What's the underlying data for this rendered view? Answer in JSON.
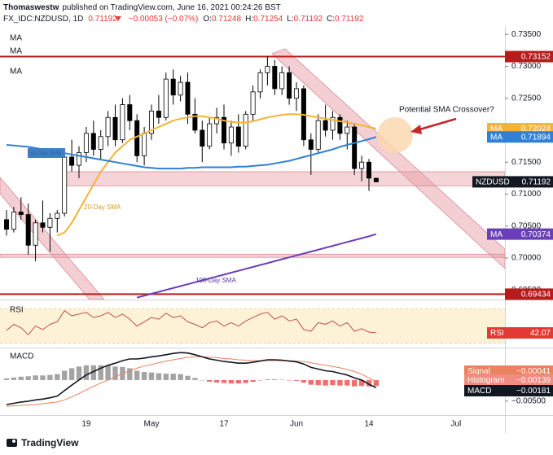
{
  "header": {
    "author": "Thomaswestw",
    "published": "published on TradingView.com, June 16, 2021 00:24:26 BST",
    "symbol": "FX_IDC:NZDUSD, 1D",
    "last": "0.71192",
    "change": "−0.00053 (−0.07%)",
    "ohlc": [
      {
        "key": "O:",
        "value": "0.71248"
      },
      {
        "key": "H:",
        "value": "0.71254"
      },
      {
        "key": "L:",
        "value": "0.71192"
      },
      {
        "key": "C:",
        "value": "0.71192"
      }
    ]
  },
  "annotations": {
    "crossover": "Potential SMA Crossover?",
    "sma20": "20-Day SMA",
    "sma50": "50-Day SMA",
    "sma100": "100-Day SMA"
  },
  "footer": "TradingView",
  "chart_data": [
    {
      "type": "candlestick",
      "symbol": "NZDUSD",
      "last_label": "0.71192",
      "up_color": "#ffffff",
      "down_color": "#000000",
      "categories": [
        null,
        null,
        null,
        null,
        null,
        null,
        null,
        null,
        null,
        null,
        null,
        "19",
        null,
        null,
        null,
        null,
        null,
        null,
        null,
        null,
        "May",
        null,
        null,
        null,
        null,
        null,
        null,
        null,
        null,
        null,
        "17",
        null,
        null,
        null,
        null,
        null,
        null,
        null,
        null,
        null,
        "Jun",
        null,
        null,
        null,
        null,
        null,
        null,
        null,
        null,
        null,
        "14",
        null,
        null,
        null,
        null,
        null,
        null,
        null,
        null,
        null,
        null,
        null,
        "Jul"
      ],
      "open": [
        0.706,
        0.7045,
        0.7072,
        0.7068,
        0.702,
        0.7055,
        0.7048,
        0.7062,
        0.707,
        0.7158,
        0.7145,
        0.7165,
        0.7195,
        0.717,
        0.719,
        0.722,
        0.7185,
        0.724,
        0.7215,
        0.716,
        0.7195,
        0.723,
        0.722,
        0.728,
        0.7255,
        0.7275,
        0.7225,
        0.72,
        0.7175,
        0.721,
        0.722,
        0.718,
        0.7205,
        0.7175,
        0.7225,
        0.726,
        0.729,
        0.73,
        0.7265,
        0.729,
        0.725,
        0.7265,
        0.7185,
        0.717,
        0.7215,
        0.72,
        0.722,
        0.7195,
        0.7205,
        0.714,
        0.715,
        0.71248,
        null,
        null,
        null,
        null,
        null,
        null,
        null,
        null,
        null,
        null,
        null
      ],
      "high": [
        0.7075,
        0.708,
        0.7095,
        0.7085,
        0.706,
        0.709,
        0.707,
        0.7075,
        0.7165,
        0.7185,
        0.7175,
        0.7205,
        0.7215,
        0.72,
        0.723,
        0.724,
        0.725,
        0.7255,
        0.7225,
        0.7205,
        0.724,
        0.7255,
        0.729,
        0.7295,
        0.7285,
        0.729,
        0.725,
        0.7215,
        0.722,
        0.7235,
        0.724,
        0.7215,
        0.7225,
        0.723,
        0.727,
        0.7295,
        0.7316,
        0.731,
        0.73,
        0.73,
        0.7275,
        0.727,
        0.7195,
        0.7225,
        0.724,
        0.723,
        0.7225,
        0.7215,
        0.721,
        0.716,
        0.7155,
        0.71254,
        null,
        null,
        null,
        null,
        null,
        null,
        null,
        null,
        null,
        null,
        null
      ],
      "low": [
        0.7035,
        0.704,
        0.706,
        0.7005,
        0.6995,
        0.704,
        0.701,
        0.704,
        0.7065,
        0.7135,
        0.7125,
        0.715,
        0.716,
        0.7155,
        0.7175,
        0.7175,
        0.718,
        0.72,
        0.715,
        0.7145,
        0.7185,
        0.721,
        0.7215,
        0.724,
        0.7245,
        0.721,
        0.7195,
        0.715,
        0.717,
        0.7195,
        0.717,
        0.716,
        0.7165,
        0.717,
        0.7215,
        0.725,
        0.727,
        0.7255,
        0.7255,
        0.724,
        0.723,
        0.7175,
        0.713,
        0.7165,
        0.719,
        0.7185,
        0.7185,
        0.717,
        0.713,
        0.712,
        0.7105,
        0.71192,
        null,
        null,
        null,
        null,
        null,
        null,
        null,
        null,
        null,
        null,
        null
      ],
      "close": [
        0.7045,
        0.7072,
        0.7068,
        0.702,
        0.7055,
        0.7048,
        0.7062,
        0.707,
        0.7158,
        0.7145,
        0.7165,
        0.7195,
        0.717,
        0.719,
        0.722,
        0.7185,
        0.724,
        0.7215,
        0.716,
        0.7195,
        0.723,
        0.722,
        0.728,
        0.7255,
        0.7275,
        0.7225,
        0.72,
        0.7175,
        0.721,
        0.722,
        0.718,
        0.7205,
        0.7175,
        0.7225,
        0.726,
        0.729,
        0.73,
        0.7265,
        0.729,
        0.725,
        0.7265,
        0.7185,
        0.717,
        0.7215,
        0.72,
        0.722,
        0.7195,
        0.7205,
        0.714,
        0.715,
        0.7125,
        0.71192,
        null,
        null,
        null,
        null,
        null,
        null,
        null,
        null,
        null,
        null,
        null
      ],
      "series": [
        {
          "name": "MA",
          "color": "#f5b335",
          "last_label": "0.72024",
          "values": [
            null,
            null,
            null,
            null,
            null,
            null,
            null,
            0.7035,
            0.704,
            0.7055,
            0.7075,
            0.7095,
            0.7115,
            0.7135,
            0.715,
            0.7165,
            0.7175,
            0.7185,
            0.719,
            0.7195,
            0.72,
            0.7205,
            0.721,
            0.7215,
            0.7218,
            0.722,
            0.7222,
            0.7222,
            0.722,
            0.7218,
            0.7215,
            0.7213,
            0.7212,
            0.7212,
            0.7214,
            0.7217,
            0.722,
            0.7222,
            0.7224,
            0.7225,
            0.7225,
            0.7224,
            0.7222,
            0.722,
            0.7218,
            0.7216,
            0.7214,
            0.7212,
            0.721,
            0.7208,
            0.7205,
            0.72024,
            null,
            null,
            null,
            null,
            null,
            null,
            null,
            null,
            null,
            null,
            null
          ]
        },
        {
          "name": "MA",
          "color": "#2f80d6",
          "last_label": "0.71894",
          "values": [
            0.7177,
            0.7176,
            0.7175,
            0.7174,
            0.7172,
            0.717,
            0.7168,
            0.7166,
            0.7164,
            0.7162,
            0.716,
            0.7158,
            0.7156,
            0.7154,
            0.7152,
            0.715,
            0.7148,
            0.7146,
            0.7144,
            0.7142,
            0.7141,
            0.714,
            0.714,
            0.714,
            0.714,
            0.7141,
            0.7141,
            0.7142,
            0.7142,
            0.7142,
            0.7142,
            0.7142,
            0.7143,
            0.7143,
            0.7144,
            0.7145,
            0.7146,
            0.7148,
            0.715,
            0.7152,
            0.7155,
            0.7158,
            0.7161,
            0.7164,
            0.7167,
            0.717,
            0.7174,
            0.7177,
            0.718,
            0.7183,
            0.7186,
            0.71894,
            null,
            null,
            null,
            null,
            null,
            null,
            null,
            null,
            null,
            null,
            null
          ]
        },
        {
          "name": "MA",
          "color": "#6a3fb8",
          "last_label": "0.70374",
          "values": [
            null,
            null,
            null,
            null,
            null,
            null,
            null,
            null,
            null,
            null,
            null,
            null,
            null,
            null,
            null,
            null,
            null,
            null,
            0.6938,
            0.6941,
            0.6944,
            0.6947,
            0.695,
            0.6953,
            0.6956,
            0.6959,
            0.6962,
            0.6965,
            0.6968,
            0.6971,
            0.6974,
            0.6977,
            0.698,
            0.6983,
            0.6986,
            0.6989,
            0.6992,
            0.6995,
            0.6998,
            0.7001,
            0.7004,
            0.7007,
            0.701,
            0.7013,
            0.7016,
            0.7019,
            0.7022,
            0.7025,
            0.7028,
            0.7031,
            0.7034,
            0.70374,
            null,
            null,
            null,
            null,
            null,
            null,
            null,
            null,
            null,
            null,
            null
          ]
        }
      ],
      "levels": [
        {
          "value": 0.73152,
          "label": "0.73152",
          "color": "#b71c1c"
        },
        {
          "value": 0.69434,
          "label": "0.69434",
          "color": "#b71c1c"
        }
      ],
      "zones": [
        {
          "from": 0.7113,
          "to": 0.7135
        },
        {
          "from": 0.7001,
          "to": 0.7006
        }
      ],
      "ylim": [
        0.6935,
        0.7363
      ],
      "yticks": [
        {
          "value": 0.735,
          "label": "0.73500"
        },
        {
          "value": 0.73,
          "label": "0.73000"
        },
        {
          "value": 0.725,
          "label": "0.72500"
        },
        {
          "value": 0.72,
          "label": "0.72000"
        },
        {
          "value": 0.715,
          "label": "0.71500"
        },
        {
          "value": 0.71,
          "label": "0.71000"
        },
        {
          "value": 0.705,
          "label": "0.70500"
        },
        {
          "value": 0.7,
          "label": "0.70000"
        },
        {
          "value": 0.695,
          "label": "0.69500"
        }
      ],
      "grid": false
    },
    {
      "type": "line",
      "name": "RSI",
      "color": "#c0504d",
      "last_label": "42.07",
      "band": [
        30,
        70
      ],
      "band_color": "#fdf1d6",
      "values": [
        45,
        52,
        48,
        40,
        50,
        46,
        52,
        55,
        68,
        62,
        64,
        66,
        60,
        62,
        66,
        60,
        64,
        58,
        50,
        55,
        60,
        58,
        65,
        60,
        62,
        55,
        52,
        48,
        54,
        56,
        50,
        54,
        50,
        56,
        60,
        64,
        66,
        58,
        62,
        56,
        58,
        46,
        44,
        54,
        52,
        56,
        50,
        54,
        44,
        47,
        43,
        42.07,
        null,
        null,
        null,
        null,
        null,
        null,
        null,
        null,
        null,
        null,
        null
      ],
      "ylim": [
        25,
        80
      ]
    },
    {
      "type": "macd",
      "title": "MACD",
      "series": [
        {
          "name": "Signal",
          "kind": "line",
          "color": "#e8825f",
          "last_label": "−0.00041",
          "values": [
            -0.0062,
            -0.0061,
            -0.006,
            -0.0059,
            -0.0058,
            -0.0056,
            -0.0054,
            -0.0052,
            -0.0047,
            -0.004,
            -0.0032,
            -0.0023,
            -0.0015,
            -0.0007,
            0,
            0.0008,
            0.0015,
            0.0022,
            0.0028,
            0.0033,
            0.0037,
            0.0041,
            0.0045,
            0.0048,
            0.0051,
            0.0054,
            0.0055,
            0.0055,
            0.0054,
            0.0053,
            0.0051,
            0.005,
            0.0048,
            0.0047,
            0.0046,
            0.0046,
            0.0046,
            0.0046,
            0.0046,
            0.0046,
            0.0045,
            0.0044,
            0.0041,
            0.0038,
            0.0035,
            0.0032,
            0.0029,
            0.0025,
            0.002,
            0.0014,
            0.0005,
            -0.00041,
            null,
            null,
            null,
            null,
            null,
            null,
            null,
            null,
            null,
            null,
            null
          ]
        },
        {
          "name": "Histogram",
          "kind": "bar",
          "color": "#f28b82",
          "up_color": "#a3a3a3",
          "down_color": "#ef6f6c",
          "last_label": "−0.00139",
          "values": [
            0.0004,
            0.0006,
            0.0008,
            0.0009,
            0.0011,
            0.0011,
            0.0012,
            0.0014,
            0.0022,
            0.0028,
            0.0032,
            0.0035,
            0.0035,
            0.0035,
            0.0035,
            0.0032,
            0.0031,
            0.0028,
            0.0022,
            0.0019,
            0.0018,
            0.0016,
            0.0015,
            0.0015,
            0.0014,
            0.001,
            0.0005,
            0,
            -0.0004,
            -0.0006,
            -0.0007,
            -0.0008,
            -0.0008,
            -0.0007,
            -0.0004,
            -0.0001,
            0.0002,
            0.0002,
            0.0001,
            -0.0001,
            -0.0002,
            -0.0006,
            -0.0011,
            -0.0012,
            -0.0013,
            -0.0012,
            -0.0013,
            -0.0013,
            -0.0015,
            -0.0014,
            -0.0015,
            -0.00139,
            null,
            null,
            null,
            null,
            null,
            null,
            null,
            null,
            null,
            null,
            null
          ]
        },
        {
          "name": "MACD",
          "kind": "line",
          "color": "#131722",
          "last_label": "−0.00181",
          "values": [
            -0.0058,
            -0.0055,
            -0.0052,
            -0.005,
            -0.0047,
            -0.0045,
            -0.0042,
            -0.0038,
            -0.0025,
            -0.0012,
            0,
            0.0012,
            0.002,
            0.0028,
            0.0035,
            0.004,
            0.0046,
            0.005,
            0.005,
            0.0052,
            0.0055,
            0.0057,
            0.006,
            0.0063,
            0.0065,
            0.0064,
            0.006,
            0.0055,
            0.005,
            0.0047,
            0.0044,
            0.0042,
            0.004,
            0.004,
            0.0042,
            0.0045,
            0.0048,
            0.0048,
            0.0047,
            0.0045,
            0.0043,
            0.0038,
            0.003,
            0.0026,
            0.0022,
            0.002,
            0.0016,
            0.0012,
            0.0005,
            0,
            -0.001,
            -0.00181,
            null,
            null,
            null,
            null,
            null,
            null,
            null,
            null,
            null,
            null,
            null
          ]
        }
      ],
      "ylim": [
        -0.0083,
        0.0075
      ],
      "yticks": [
        {
          "value": 0,
          "label": "0.00000"
        },
        {
          "value": -0.005,
          "label": "−0.00500"
        }
      ]
    }
  ]
}
